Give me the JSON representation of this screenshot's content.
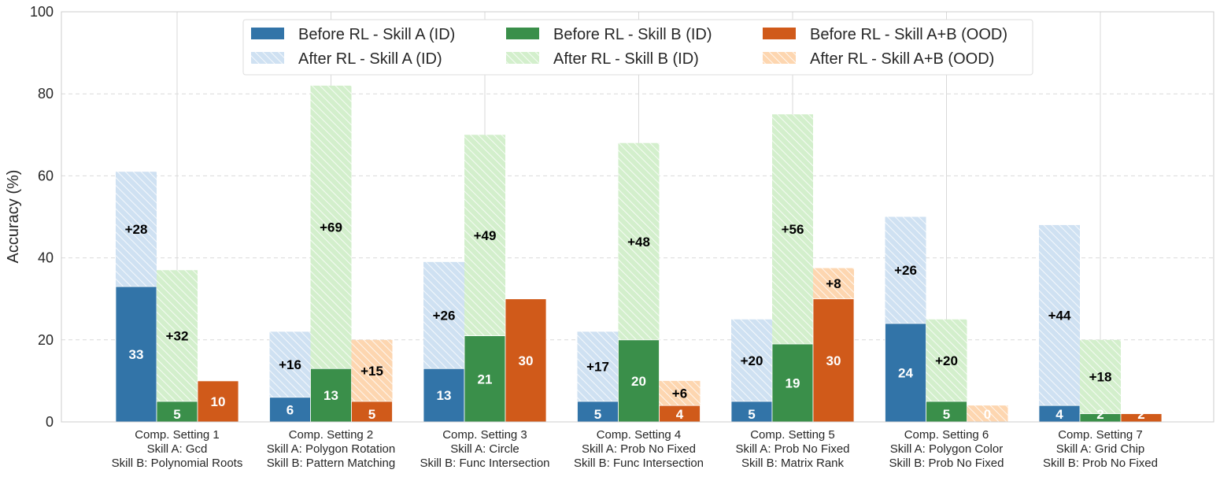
{
  "chart_data": {
    "type": "bar",
    "ylabel": "Accuracy (%)",
    "xlabel": "",
    "ylim": [
      0,
      100
    ],
    "yticks": [
      0,
      20,
      40,
      60,
      80,
      100
    ],
    "grid": "horizontal dashed + vertical at categories",
    "legend_position": "top-center",
    "categories": [
      [
        "Comp. Setting 1",
        "Skill A: Gcd",
        "Skill B: Polynomial Roots"
      ],
      [
        "Comp. Setting 2",
        "Skill A: Polygon Rotation",
        "Skill B: Pattern Matching"
      ],
      [
        "Comp. Setting 3",
        "Skill A: Circle",
        "Skill B: Func Intersection"
      ],
      [
        "Comp. Setting 4",
        "Skill A: Prob No Fixed",
        "Skill B: Func Intersection"
      ],
      [
        "Comp. Setting 5",
        "Skill A: Prob No Fixed",
        "Skill B: Matrix Rank"
      ],
      [
        "Comp. Setting 6",
        "Skill A: Polygon Color",
        "Skill B: Prob No Fixed"
      ],
      [
        "Comp. Setting 7",
        "Skill A: Grid Chip",
        "Skill B: Prob No Fixed"
      ]
    ],
    "series": [
      {
        "name": "Before RL - Skill A (ID)",
        "values": [
          33,
          6,
          13,
          5,
          5,
          24,
          4
        ],
        "color": "#3274a8"
      },
      {
        "name": "Before RL - Skill B (ID)",
        "values": [
          5,
          13,
          21,
          20,
          19,
          5,
          2
        ],
        "color": "#3a8f4a"
      },
      {
        "name": "Before RL - Skill A+B (OOD)",
        "values": [
          10,
          5,
          30,
          4,
          30,
          0,
          2
        ],
        "color": "#d05a1a"
      },
      {
        "name": "After RL - Skill A (ID)",
        "values": [
          61,
          22,
          39,
          22,
          25,
          50,
          48
        ],
        "color": "#cfe1f2"
      },
      {
        "name": "After RL - Skill B (ID)",
        "values": [
          37,
          82,
          70,
          68,
          75,
          25,
          20
        ],
        "color": "#d3efcc"
      },
      {
        "name": "After RL - Skill A+B (OOD)",
        "values": [
          10,
          20,
          30,
          10,
          37.5,
          4,
          2
        ],
        "color": "#fdd6b0"
      }
    ],
    "before_labels": [
      [
        "33",
        "5",
        "10"
      ],
      [
        "6",
        "13",
        "5"
      ],
      [
        "13",
        "21",
        "30"
      ],
      [
        "5",
        "20",
        "4"
      ],
      [
        "5",
        "19",
        "30"
      ],
      [
        "24",
        "5",
        "0"
      ],
      [
        "4",
        "2",
        "2"
      ]
    ],
    "delta_labels": [
      [
        "+28",
        "+32",
        ""
      ],
      [
        "+16",
        "+69",
        "+15"
      ],
      [
        "+26",
        "+49",
        ""
      ],
      [
        "+17",
        "+48",
        "+6"
      ],
      [
        "+20",
        "+56",
        "+8"
      ],
      [
        "+26",
        "+20",
        ""
      ],
      [
        "+44",
        "+18",
        ""
      ]
    ]
  }
}
